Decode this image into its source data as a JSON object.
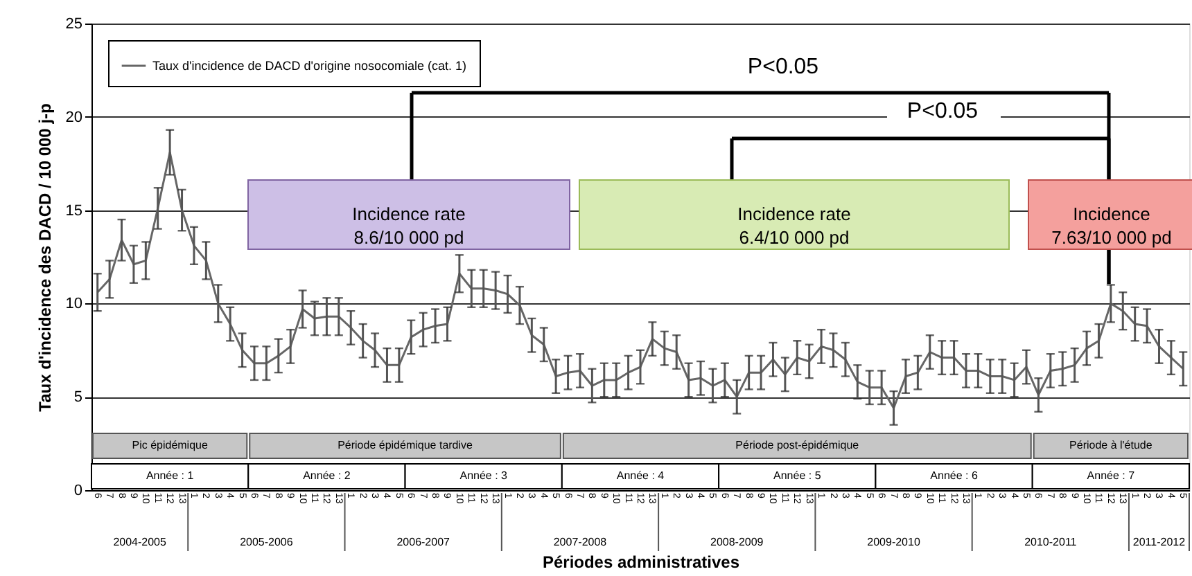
{
  "chart_data": {
    "type": "line",
    "xlabel": "Périodes administratives",
    "ylabel": "Taux d'incidence des  DACD / 10 000 j-p",
    "categories": [
      "6",
      "7",
      "8",
      "9",
      "10",
      "11",
      "12",
      "13",
      "1",
      "2",
      "3",
      "4",
      "5",
      "6",
      "7",
      "8",
      "9",
      "10",
      "11",
      "12",
      "13",
      "1",
      "2",
      "3",
      "4",
      "5",
      "6",
      "7",
      "8",
      "9",
      "10",
      "11",
      "12",
      "13",
      "1",
      "2",
      "3",
      "4",
      "5",
      "6",
      "7",
      "8",
      "9",
      "10",
      "11",
      "12",
      "13",
      "1",
      "2",
      "3",
      "4",
      "5",
      "6",
      "7",
      "8",
      "9",
      "10",
      "11",
      "12",
      "13",
      "1",
      "2",
      "3",
      "4",
      "5",
      "6",
      "7",
      "8",
      "9",
      "10",
      "11",
      "12",
      "13",
      "1",
      "2",
      "3",
      "4",
      "5",
      "6",
      "7",
      "8",
      "9",
      "10",
      "11",
      "12",
      "13",
      "1",
      "2",
      "3",
      "4",
      "5"
    ],
    "series": [
      {
        "name": "Taux d'incidence de DACD d'origine nosocomiale (cat. 1)",
        "color": "#666666",
        "values": [
          10.6,
          11.3,
          13.4,
          12.1,
          12.3,
          15.1,
          18.1,
          15.0,
          13.1,
          12.3,
          10.0,
          8.9,
          7.5,
          6.8,
          6.8,
          7.2,
          7.7,
          9.7,
          9.2,
          9.3,
          9.3,
          8.7,
          8.0,
          7.5,
          6.7,
          6.7,
          8.2,
          8.6,
          8.8,
          8.9,
          11.6,
          10.8,
          10.8,
          10.7,
          10.5,
          9.9,
          8.3,
          7.8,
          6.1,
          6.3,
          6.4,
          5.6,
          5.9,
          5.9,
          6.3,
          6.6,
          8.1,
          7.6,
          7.4,
          5.9,
          6.0,
          5.6,
          5.9,
          5.0,
          6.3,
          6.3,
          7.0,
          6.2,
          7.1,
          6.9,
          7.7,
          7.5,
          7.0,
          5.8,
          5.5,
          5.5,
          4.4,
          6.1,
          6.3,
          7.4,
          7.1,
          7.1,
          6.4,
          6.4,
          6.1,
          6.1,
          5.9,
          6.6,
          5.1,
          6.4,
          6.5,
          6.7,
          7.6,
          8.0,
          10.0,
          9.6,
          8.9,
          8.8,
          7.7,
          7.1,
          6.5
        ],
        "errors": [
          1.0,
          1.0,
          1.1,
          1.0,
          1.0,
          1.1,
          1.2,
          1.1,
          1.0,
          1.0,
          1.0,
          0.9,
          0.9,
          0.9,
          0.9,
          0.9,
          0.9,
          1.0,
          0.9,
          1.0,
          1.0,
          0.9,
          0.9,
          0.9,
          0.9,
          0.9,
          0.9,
          0.9,
          0.9,
          0.9,
          1.0,
          1.0,
          1.0,
          1.0,
          1.0,
          1.0,
          0.9,
          0.9,
          0.9,
          0.9,
          0.9,
          0.9,
          0.9,
          0.9,
          0.9,
          0.9,
          0.9,
          0.9,
          0.9,
          0.9,
          0.9,
          0.9,
          0.9,
          0.9,
          0.9,
          0.9,
          0.9,
          0.9,
          0.9,
          0.9,
          0.9,
          0.9,
          0.9,
          0.9,
          0.9,
          0.9,
          0.9,
          0.9,
          0.9,
          0.9,
          0.9,
          0.9,
          0.9,
          0.9,
          0.9,
          0.9,
          0.9,
          0.9,
          0.9,
          0.9,
          0.9,
          0.9,
          0.9,
          0.9,
          1.0,
          1.0,
          0.9,
          0.9,
          0.9,
          0.9,
          0.9
        ]
      }
    ],
    "ylim": [
      0,
      25
    ],
    "yticks": [
      0,
      5,
      10,
      15,
      20,
      25
    ],
    "grid": "y",
    "legend": "top left",
    "marker": "none",
    "line_style": "solid",
    "annotations": [
      "P<0.05",
      "P<0.05",
      "Incidence rate\n8.6/10 000 pd",
      "Incidence rate\n6.4/10 000 pd",
      "Incidence\n7.63/10 000 pd",
      "Pic épidémique",
      "Période épidémique tardive",
      "Période post-épidémique",
      "Période à l'étude",
      "Année : 1",
      "Année : 2",
      "Année : 3",
      "Année : 4",
      "Année : 5",
      "Année : 6",
      "Année : 7",
      "2004-2005",
      "2005-2006",
      "2006-2007",
      "2007-2008",
      "2008-2009",
      "2009-2010",
      "2010-2011",
      "2011-2012"
    ]
  }
}
